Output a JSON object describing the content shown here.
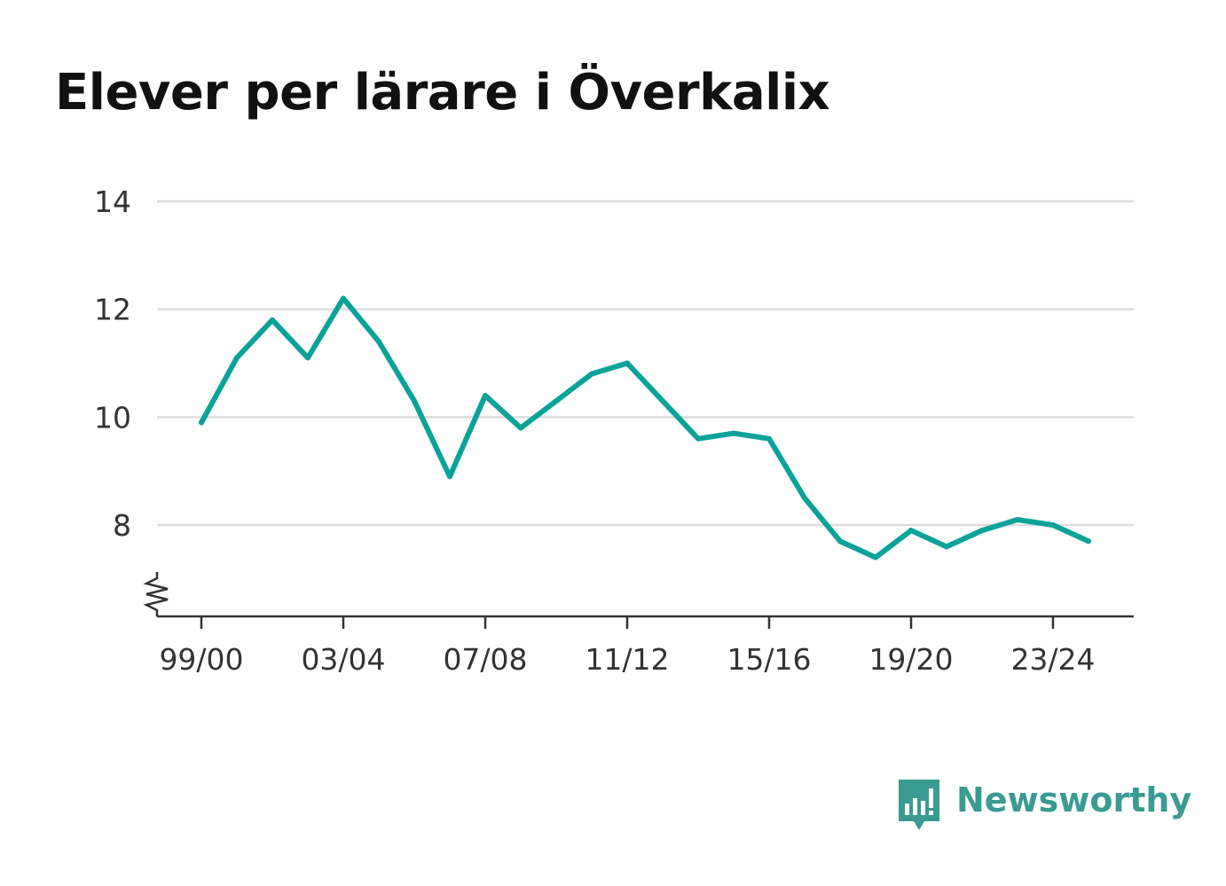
{
  "chart_data": {
    "type": "line",
    "title": "Elever per lärare i Överkalix",
    "xlabel": "",
    "ylabel": "",
    "x": [
      "99/00",
      "00/01",
      "01/02",
      "02/03",
      "03/04",
      "04/05",
      "05/06",
      "06/07",
      "07/08",
      "08/09",
      "09/10",
      "10/11",
      "11/12",
      "12/13",
      "13/14",
      "14/15",
      "15/16",
      "16/17",
      "17/18",
      "18/19",
      "19/20",
      "20/21",
      "21/22",
      "22/23",
      "23/24",
      "24/25"
    ],
    "x_tick_labels": [
      "99/00",
      "03/04",
      "07/08",
      "11/12",
      "15/16",
      "19/20",
      "23/24"
    ],
    "series": [
      {
        "values": [
          9.9,
          11.1,
          11.8,
          11.1,
          12.2,
          11.4,
          10.3,
          8.9,
          10.4,
          9.8,
          10.3,
          10.8,
          11.0,
          10.3,
          9.6,
          9.7,
          9.6,
          8.5,
          7.7,
          7.4,
          7.9,
          7.6,
          7.9,
          8.1,
          8.0,
          7.7
        ]
      }
    ],
    "y_ticks": [
      "8",
      "10",
      "12",
      "14"
    ],
    "y_tick_values": [
      8,
      10,
      12,
      14
    ],
    "ylim": [
      6.3,
      14
    ],
    "y_axis_break": true,
    "grid": true,
    "line_color": "#0ba399"
  },
  "brand": {
    "name": "Newsworthy",
    "icon": "newsworthy-logo-icon",
    "color": "#3a9b93"
  }
}
